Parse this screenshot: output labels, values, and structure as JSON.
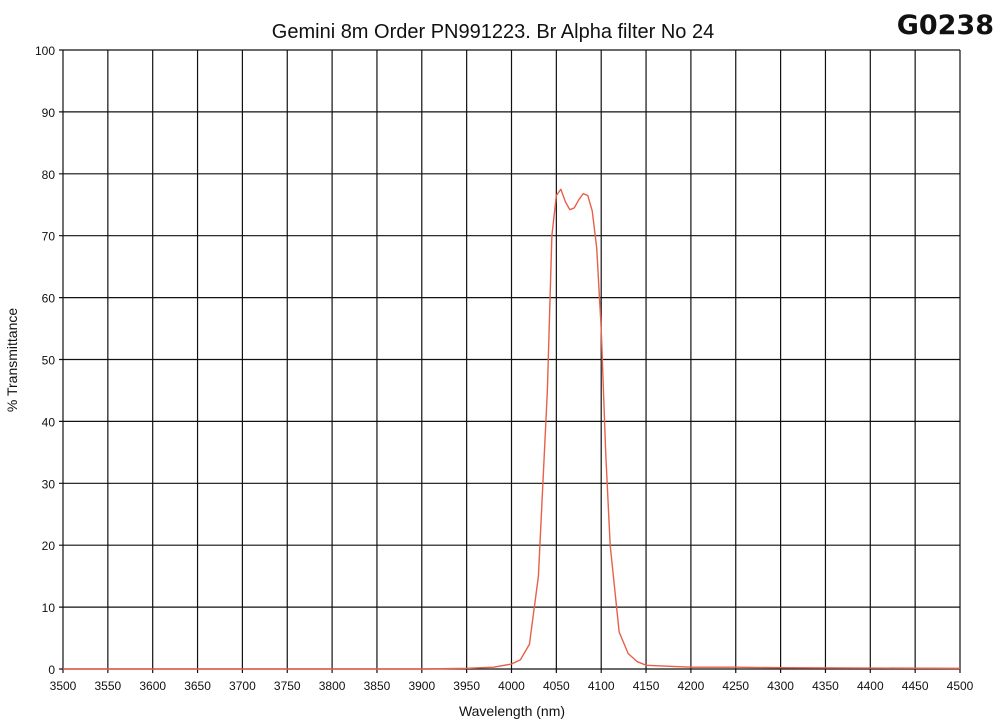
{
  "header": {
    "title": "Gemini 8m Order PN991223. Br Alpha filter No 24",
    "code": "G0238"
  },
  "chart_data": {
    "type": "line",
    "title": "Gemini 8m Order PN991223. Br Alpha filter No 24",
    "xlabel": "Wavelength (nm)",
    "ylabel": "% Transmittance",
    "xlim": [
      3500,
      4500
    ],
    "ylim": [
      0,
      100
    ],
    "x_ticks": [
      "3500",
      "3550",
      "3600",
      "3650",
      "3700",
      "3750",
      "3800",
      "3850",
      "3900",
      "3950",
      "4000",
      "4050",
      "4100",
      "4150",
      "4200",
      "4250",
      "4300",
      "4350",
      "4400",
      "4450",
      "4500"
    ],
    "y_ticks": [
      "0",
      "10",
      "20",
      "30",
      "40",
      "50",
      "60",
      "70",
      "80",
      "90",
      "100"
    ],
    "grid": true,
    "legend": "none",
    "line_color": "#e8604a",
    "series": [
      {
        "x": [
          3500,
          3900,
          3950,
          3980,
          4000,
          4010,
          4020,
          4030,
          4040,
          4045,
          4050,
          4055,
          4060,
          4065,
          4070,
          4075,
          4080,
          4085,
          4090,
          4095,
          4100,
          4105,
          4110,
          4120,
          4130,
          4140,
          4150,
          4200,
          4250,
          4300,
          4500
        ],
        "y": [
          0,
          0,
          0.1,
          0.3,
          0.8,
          1.5,
          4,
          15,
          45,
          70,
          76.5,
          77.5,
          75.5,
          74.2,
          74.5,
          75.8,
          76.8,
          76.5,
          74,
          68,
          55,
          35,
          20,
          6,
          2.5,
          1.2,
          0.6,
          0.3,
          0.3,
          0.2,
          0.1
        ]
      }
    ]
  }
}
